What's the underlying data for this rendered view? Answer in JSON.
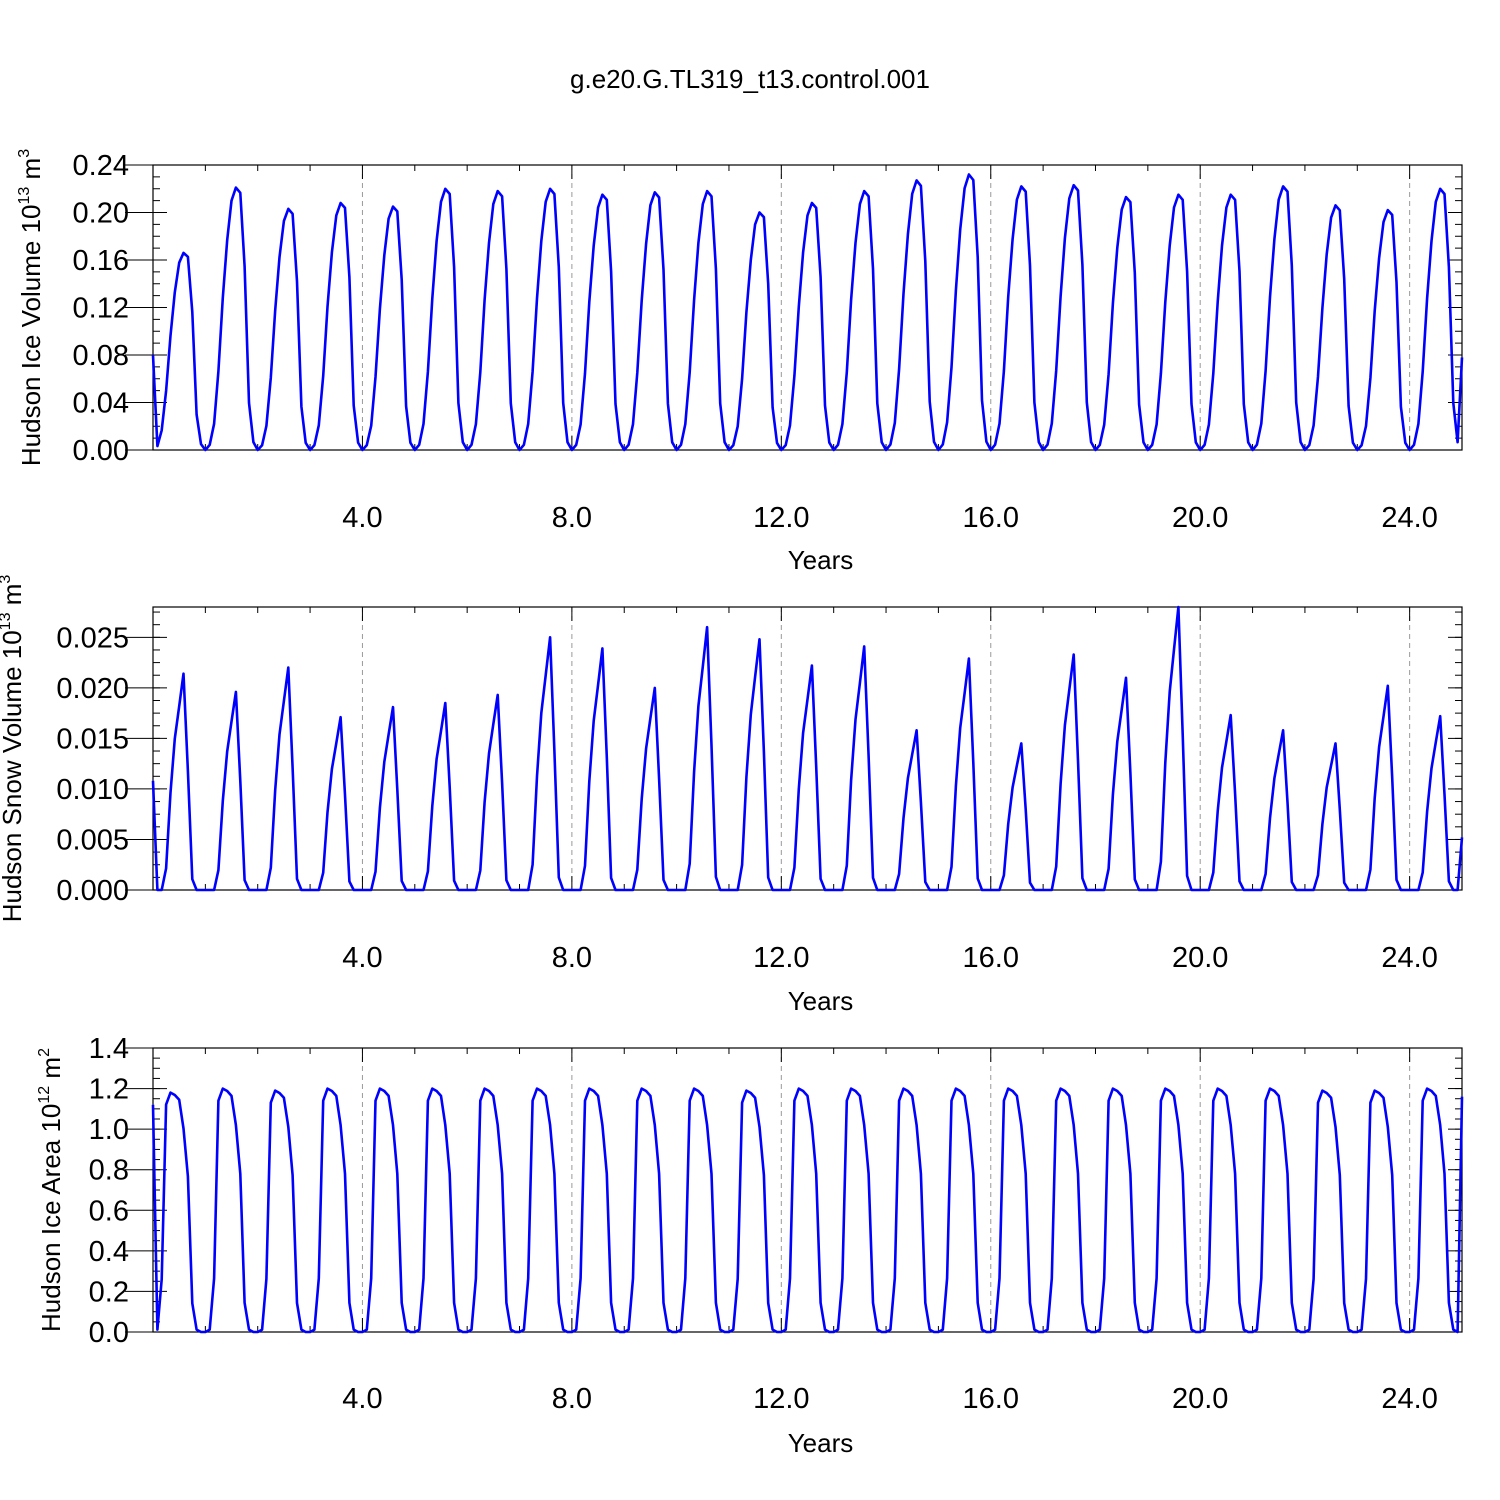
{
  "figure_title": "g.e20.G.TL319_t13.control.001",
  "line_color": "#0000ff",
  "chart_data": [
    {
      "type": "line",
      "ylabel": "Hudson Ice Volume 10",
      "ylabel_exp": "13",
      "ylabel_unit": " m",
      "ylabel_unit_exp": "3",
      "xlabel": "Years",
      "xlim": [
        0,
        25
      ],
      "ylim": [
        0,
        0.24
      ],
      "xticks": [
        4,
        8,
        12,
        16,
        20,
        24
      ],
      "xtick_labels": [
        "4.0",
        "8.0",
        "12.0",
        "16.0",
        "20.0",
        "24.0"
      ],
      "yticks": [
        0,
        0.04,
        0.08,
        0.12,
        0.16,
        0.2,
        0.24
      ],
      "ytick_labels": [
        "0.00",
        "0.04",
        "0.08",
        "0.12",
        "0.16",
        "0.20",
        "0.24"
      ],
      "vgrid": "dashed at x ticks",
      "series": [
        {
          "peaks": [
            0.166,
            0.221,
            0.203,
            0.208,
            0.205,
            0.22,
            0.218,
            0.22,
            0.215,
            0.217,
            0.218,
            0.2,
            0.208,
            0.218,
            0.227,
            0.232,
            0.222,
            0.223,
            0.213,
            0.215,
            0.215,
            0.222,
            0.206,
            0.202,
            0.22
          ],
          "monthly_shape": [
            0.0,
            0.02,
            0.1,
            0.3,
            0.58,
            0.8,
            0.95,
            1.0,
            0.98,
            0.7,
            0.18,
            0.03
          ],
          "start_value": 0.08,
          "end_value": 0.078
        }
      ]
    },
    {
      "type": "line",
      "ylabel": "Hudson Snow Volume 10",
      "ylabel_exp": "13",
      "ylabel_unit": " m",
      "ylabel_unit_exp": "3",
      "xlabel": "Years",
      "xlim": [
        0,
        25
      ],
      "ylim": [
        0,
        0.028
      ],
      "xticks": [
        4,
        8,
        12,
        16,
        20,
        24
      ],
      "xtick_labels": [
        "4.0",
        "8.0",
        "12.0",
        "16.0",
        "20.0",
        "24.0"
      ],
      "yticks": [
        0,
        0.005,
        0.01,
        0.015,
        0.02,
        0.025
      ],
      "ytick_labels": [
        "0.000",
        "0.005",
        "0.010",
        "0.015",
        "0.020",
        "0.025"
      ],
      "vgrid": "dashed at x ticks",
      "series": [
        {
          "peaks": [
            0.0214,
            0.0196,
            0.022,
            0.0171,
            0.0181,
            0.0185,
            0.0193,
            0.025,
            0.0239,
            0.02,
            0.026,
            0.0248,
            0.0222,
            0.0241,
            0.0158,
            0.0229,
            0.0145,
            0.0233,
            0.021,
            0.028,
            0.0173,
            0.0158,
            0.0145,
            0.0202,
            0.0172
          ],
          "monthly_shape": [
            0.0,
            0.0,
            0.0,
            0.1,
            0.45,
            0.7,
            0.85,
            1.0,
            0.55,
            0.05,
            0.0,
            0.0
          ],
          "start_value": 0.0108,
          "end_value": 0.0052
        }
      ]
    },
    {
      "type": "line",
      "ylabel": "Hudson Ice Area 10",
      "ylabel_exp": "12",
      "ylabel_unit": " m",
      "ylabel_unit_exp": "2",
      "xlabel": "Years",
      "xlim": [
        0,
        25
      ],
      "ylim": [
        0,
        1.4
      ],
      "xticks": [
        4,
        8,
        12,
        16,
        20,
        24
      ],
      "xtick_labels": [
        "4.0",
        "8.0",
        "12.0",
        "16.0",
        "20.0",
        "24.0"
      ],
      "yticks": [
        0,
        0.2,
        0.4,
        0.6,
        0.8,
        1.0,
        1.2,
        1.4
      ],
      "ytick_labels": [
        "0.0",
        "0.2",
        "0.4",
        "0.6",
        "0.8",
        "1.0",
        "1.2",
        "1.4"
      ],
      "vgrid": "dashed at x ticks",
      "series": [
        {
          "peaks": [
            1.18,
            1.2,
            1.19,
            1.2,
            1.2,
            1.2,
            1.2,
            1.2,
            1.2,
            1.2,
            1.2,
            1.19,
            1.2,
            1.2,
            1.2,
            1.2,
            1.2,
            1.2,
            1.2,
            1.2,
            1.2,
            1.2,
            1.19,
            1.19,
            1.2
          ],
          "monthly_shape": [
            0.0,
            0.01,
            0.22,
            0.95,
            1.0,
            0.99,
            0.97,
            0.85,
            0.65,
            0.12,
            0.01,
            0.0
          ],
          "start_value": 1.12,
          "end_value": 1.16
        }
      ]
    }
  ]
}
